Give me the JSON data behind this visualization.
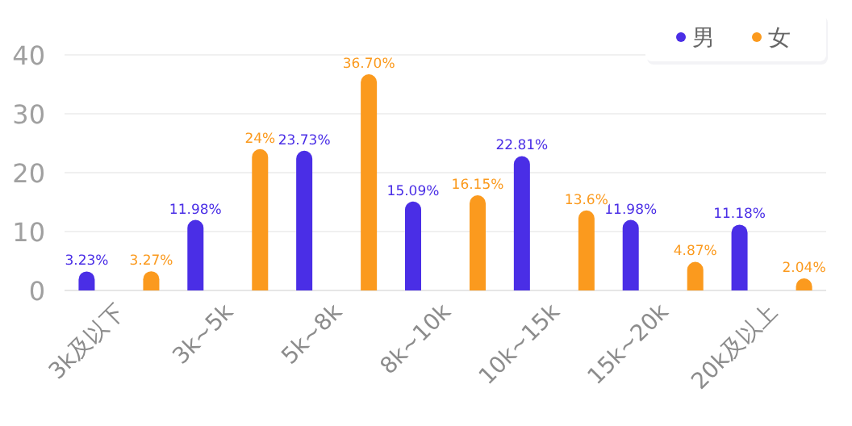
{
  "chart_data": {
    "type": "bar",
    "categories": [
      "3k及以下",
      "3k~5k",
      "5k~8k",
      "8k~10k",
      "10k~15k",
      "15k~20k",
      "20k及以上"
    ],
    "series": [
      {
        "name": "男",
        "color": "#4a2ee6",
        "values": [
          3.23,
          11.98,
          23.73,
          15.09,
          22.81,
          11.98,
          11.18
        ],
        "value_labels": [
          "3.23%",
          "11.98%",
          "23.73%",
          "15.09%",
          "22.81%",
          "11.98%",
          "11.18%"
        ]
      },
      {
        "name": "女",
        "color": "#fb9a1e",
        "values": [
          3.27,
          24,
          36.7,
          16.15,
          13.6,
          4.87,
          2.04
        ],
        "value_labels": [
          "3.27%",
          "24%",
          "36.70%",
          "16.15%",
          "13.6%",
          "4.87%",
          "2.04%"
        ]
      }
    ],
    "ylim": [
      0,
      40
    ],
    "yticks": [
      0,
      10,
      20,
      30,
      40
    ],
    "grid": "y",
    "legend": "top right"
  }
}
